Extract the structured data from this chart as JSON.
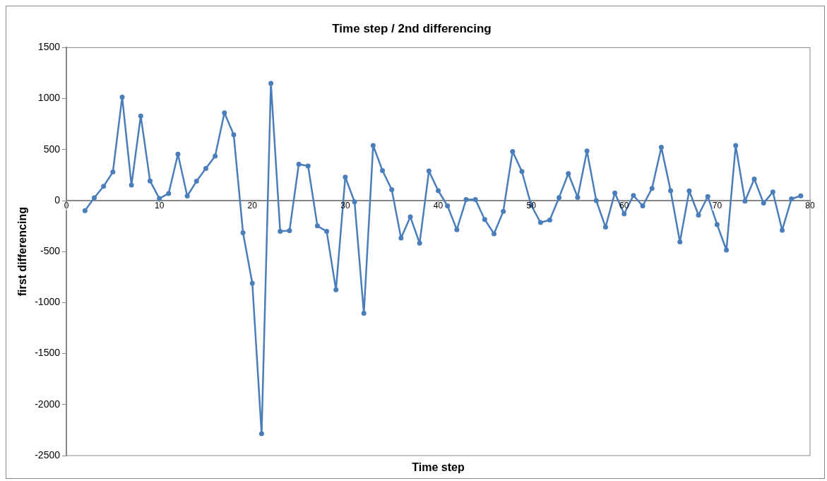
{
  "chart_data": {
    "type": "line",
    "title": "Time step / 2nd differencing",
    "xlabel": "Time step",
    "ylabel": "first differencing",
    "x": [
      2,
      3,
      4,
      5,
      6,
      7,
      8,
      9,
      10,
      11,
      12,
      13,
      14,
      15,
      16,
      17,
      18,
      19,
      20,
      21,
      22,
      23,
      24,
      25,
      26,
      27,
      28,
      29,
      30,
      31,
      32,
      33,
      34,
      35,
      36,
      37,
      38,
      39,
      40,
      41,
      42,
      43,
      44,
      45,
      46,
      47,
      48,
      49,
      50,
      51,
      52,
      53,
      54,
      55,
      56,
      57,
      58,
      59,
      60,
      61,
      62,
      63,
      64,
      65,
      66,
      67,
      68,
      69,
      70,
      71,
      72,
      73,
      74,
      75,
      76,
      77,
      78,
      79
    ],
    "series": [
      {
        "color": "#4a7ebb",
        "values": [
          -98,
          28,
          140,
          280,
          1015,
          152,
          830,
          193,
          20,
          70,
          455,
          45,
          190,
          315,
          437,
          860,
          645,
          -315,
          -810,
          -2285,
          1150,
          -302,
          -295,
          357,
          340,
          -248,
          -302,
          -875,
          230,
          -12,
          -1105,
          540,
          295,
          107,
          -367,
          -160,
          -417,
          290,
          97,
          -52,
          -285,
          10,
          10,
          -185,
          -325,
          -105,
          482,
          285,
          -45,
          -215,
          -190,
          30,
          265,
          32,
          487,
          0,
          -260,
          75,
          -130,
          50,
          -52,
          120,
          522,
          97,
          -405,
          95,
          -142,
          40,
          -235,
          -485,
          540,
          -5,
          212,
          -25,
          85,
          -290,
          17,
          47
        ]
      }
    ],
    "xlim": [
      0,
      80
    ],
    "xticks": [
      0,
      10,
      20,
      30,
      40,
      50,
      60,
      70,
      80
    ],
    "ylim": [
      -2500,
      1500
    ],
    "yticks": [
      -2500,
      -2000,
      -1500,
      -1000,
      -500,
      0,
      500,
      1000,
      1500
    ],
    "grid": false,
    "legend": false,
    "marker": "circle",
    "line_style": "solid"
  }
}
